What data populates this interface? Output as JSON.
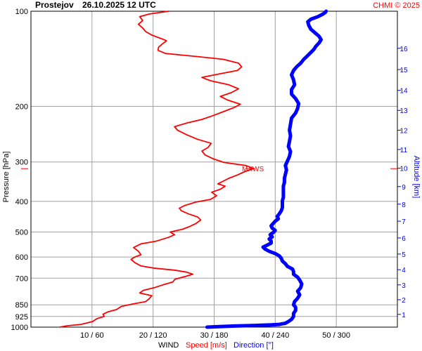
{
  "header": {
    "station": "Prostejov",
    "datetime": "26.10.2025 12 UTC",
    "copyright": "CHMI © 2025"
  },
  "labels": {
    "wind": "WIND",
    "speed": "Speed [m/s]",
    "direction": "Direction [°]",
    "pressure_axis": "Pressure [hPa]",
    "altitude_axis": "Altitude [km]",
    "mxws": "MXWS"
  },
  "colors": {
    "speed": "#ff0000",
    "direction": "#0000ff",
    "grid": "#a0a0a0",
    "axis_text": "#000000",
    "altitude_text": "#0000ff"
  },
  "chart_data": {
    "type": "line",
    "y_scale": "log",
    "y_reversed": true,
    "ylim": [
      1000,
      100
    ],
    "pressure_ticks": [
      100,
      200,
      300,
      400,
      500,
      600,
      700,
      850,
      925,
      1000
    ],
    "x_ticks": [
      "10 / 60",
      "20 / 120",
      "30 / 180",
      "40 / 240",
      "50 / 300"
    ],
    "x_tick_speed_values": [
      10,
      20,
      30,
      40,
      50
    ],
    "xlim_speed": [
      0,
      60
    ],
    "xlim_direction": [
      0,
      360
    ],
    "altitude_ticks_km": [
      "1",
      "2",
      "3",
      "4",
      "5",
      "6",
      "7",
      "8",
      "9",
      "10",
      "11",
      "12",
      "13",
      "14",
      "15",
      "16"
    ],
    "altitude_tick_pressure": [
      911,
      819,
      735,
      658,
      587,
      522,
      462,
      408,
      359,
      314,
      274,
      238,
      206,
      178,
      153,
      131
    ],
    "mxws_pressure": 315,
    "series": [
      {
        "name": "Speed [m/s]",
        "points": [
          [
            1000,
            4.7
          ],
          [
            990,
            6.0
          ],
          [
            980,
            8.2
          ],
          [
            960,
            10.1
          ],
          [
            940,
            10.8
          ],
          [
            925,
            12.0
          ],
          [
            910,
            11.8
          ],
          [
            895,
            12.6
          ],
          [
            880,
            14.0
          ],
          [
            860,
            14.8
          ],
          [
            845,
            16.6
          ],
          [
            830,
            18.8
          ],
          [
            815,
            19.3
          ],
          [
            795,
            19.8
          ],
          [
            780,
            17.8
          ],
          [
            765,
            18.4
          ],
          [
            750,
            20.2
          ],
          [
            735,
            21.6
          ],
          [
            720,
            23.2
          ],
          [
            705,
            23.6
          ],
          [
            690,
            25.4
          ],
          [
            680,
            26.5
          ],
          [
            670,
            25.5
          ],
          [
            660,
            23.5
          ],
          [
            650,
            20.0
          ],
          [
            640,
            18.0
          ],
          [
            625,
            17.0
          ],
          [
            610,
            16.4
          ],
          [
            600,
            17.0
          ],
          [
            590,
            18.0
          ],
          [
            575,
            17.6
          ],
          [
            560,
            16.8
          ],
          [
            545,
            18.0
          ],
          [
            535,
            20.4
          ],
          [
            520,
            22.5
          ],
          [
            510,
            23.5
          ],
          [
            500,
            22.8
          ],
          [
            490,
            24.8
          ],
          [
            480,
            26.0
          ],
          [
            470,
            27.0
          ],
          [
            458,
            27.8
          ],
          [
            448,
            27.3
          ],
          [
            438,
            25.8
          ],
          [
            428,
            24.6
          ],
          [
            420,
            24.3
          ],
          [
            412,
            25.2
          ],
          [
            402,
            27.0
          ],
          [
            394,
            29.4
          ],
          [
            384,
            30.4
          ],
          [
            374,
            29.6
          ],
          [
            366,
            31.0
          ],
          [
            358,
            31.8
          ],
          [
            352,
            30.6
          ],
          [
            345,
            31.5
          ],
          [
            338,
            32.4
          ],
          [
            330,
            33.8
          ],
          [
            322,
            35.0
          ],
          [
            315,
            36.5
          ],
          [
            308,
            35.2
          ],
          [
            301,
            31.6
          ],
          [
            293,
            29.8
          ],
          [
            285,
            28.5
          ],
          [
            277,
            28.0
          ],
          [
            270,
            29.0
          ],
          [
            262,
            29.5
          ],
          [
            254,
            27.2
          ],
          [
            246,
            25.5
          ],
          [
            238,
            24.0
          ],
          [
            232,
            23.5
          ],
          [
            226,
            25.5
          ],
          [
            220,
            28.0
          ],
          [
            214,
            29.8
          ],
          [
            208,
            31.5
          ],
          [
            202,
            33.2
          ],
          [
            197,
            34.3
          ],
          [
            191,
            32.2
          ],
          [
            186,
            31.0
          ],
          [
            181,
            32.8
          ],
          [
            176,
            34.0
          ],
          [
            171,
            32.4
          ],
          [
            166,
            29.4
          ],
          [
            162,
            28.0
          ],
          [
            158,
            30.8
          ],
          [
            154,
            33.8
          ],
          [
            150,
            34.5
          ],
          [
            146,
            34.0
          ],
          [
            142,
            31.5
          ],
          [
            139,
            27.0
          ],
          [
            136,
            22.0
          ],
          [
            133,
            20.8
          ],
          [
            130,
            20.9
          ],
          [
            127,
            21.5
          ],
          [
            124,
            22.2
          ],
          [
            122,
            21.3
          ],
          [
            119,
            19.8
          ],
          [
            116,
            18.8
          ],
          [
            113,
            18.3
          ],
          [
            110,
            17.6
          ],
          [
            107,
            18.3
          ],
          [
            104,
            17.8
          ],
          [
            102,
            19.4
          ],
          [
            100,
            22.6
          ]
        ]
      },
      {
        "name": "Direction [°]",
        "points": [
          [
            1000,
            173
          ],
          [
            996,
            185
          ],
          [
            992,
            200
          ],
          [
            988,
            220
          ],
          [
            984,
            236
          ],
          [
            980,
            244
          ],
          [
            972,
            250
          ],
          [
            960,
            253
          ],
          [
            945,
            256
          ],
          [
            925,
            258
          ],
          [
            905,
            258
          ],
          [
            885,
            260
          ],
          [
            865,
            260
          ],
          [
            850,
            258
          ],
          [
            830,
            259
          ],
          [
            810,
            262
          ],
          [
            790,
            264
          ],
          [
            770,
            262
          ],
          [
            750,
            265
          ],
          [
            730,
            266
          ],
          [
            710,
            264
          ],
          [
            695,
            262
          ],
          [
            680,
            258
          ],
          [
            668,
            258
          ],
          [
            655,
            257
          ],
          [
            642,
            252
          ],
          [
            630,
            250
          ],
          [
            618,
            247
          ],
          [
            606,
            246
          ],
          [
            595,
            244
          ],
          [
            585,
            240
          ],
          [
            575,
            234
          ],
          [
            566,
            230
          ],
          [
            558,
            228
          ],
          [
            550,
            232
          ],
          [
            542,
            236
          ],
          [
            534,
            236
          ],
          [
            526,
            234
          ],
          [
            518,
            237
          ],
          [
            510,
            235
          ],
          [
            502,
            238
          ],
          [
            494,
            240
          ],
          [
            486,
            237
          ],
          [
            478,
            236
          ],
          [
            470,
            238
          ],
          [
            462,
            240
          ],
          [
            454,
            243
          ],
          [
            446,
            242
          ],
          [
            438,
            244
          ],
          [
            428,
            246
          ],
          [
            418,
            247
          ],
          [
            408,
            247
          ],
          [
            398,
            247
          ],
          [
            388,
            248
          ],
          [
            378,
            248
          ],
          [
            368,
            248
          ],
          [
            358,
            248
          ],
          [
            348,
            249
          ],
          [
            338,
            249
          ],
          [
            328,
            250
          ],
          [
            318,
            251
          ],
          [
            308,
            250
          ],
          [
            298,
            252
          ],
          [
            288,
            254
          ],
          [
            278,
            255
          ],
          [
            268,
            253
          ],
          [
            258,
            254
          ],
          [
            248,
            255
          ],
          [
            238,
            254
          ],
          [
            228,
            255
          ],
          [
            218,
            256
          ],
          [
            210,
            260
          ],
          [
            203,
            262
          ],
          [
            196,
            263
          ],
          [
            189,
            260
          ],
          [
            183,
            256
          ],
          [
            177,
            256
          ],
          [
            171,
            259
          ],
          [
            165,
            258
          ],
          [
            159,
            256
          ],
          [
            154,
            258
          ],
          [
            150,
            261
          ],
          [
            146,
            265
          ],
          [
            142,
            268
          ],
          [
            139,
            271
          ],
          [
            135,
            275
          ],
          [
            132,
            278
          ],
          [
            129,
            280
          ],
          [
            126,
            283
          ],
          [
            123,
            285
          ],
          [
            120,
            283
          ],
          [
            117,
            279
          ],
          [
            114,
            275
          ],
          [
            111,
            273
          ],
          [
            108,
            272
          ],
          [
            106,
            275
          ],
          [
            104,
            282
          ],
          [
            102,
            287
          ],
          [
            101,
            289
          ],
          [
            100,
            290
          ]
        ]
      }
    ]
  }
}
